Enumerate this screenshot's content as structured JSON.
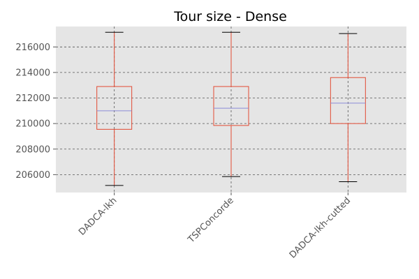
{
  "chart_data": {
    "type": "box",
    "title": "Tour size - Dense",
    "xlabel": "",
    "ylabel": "",
    "ylim": [
      204600,
      217600
    ],
    "yticks": [
      206000,
      208000,
      210000,
      212000,
      214000,
      216000
    ],
    "ytick_labels": [
      "206000",
      "208000",
      "210000",
      "212000",
      "214000",
      "216000"
    ],
    "grid": true,
    "categories": [
      "DADCA-lkh",
      "TSPConcorde",
      "DADCA-lkh-cutted"
    ],
    "boxes": [
      {
        "name": "DADCA-lkh",
        "whisker_low": 205150,
        "q1": 209550,
        "median": 211000,
        "q3": 212900,
        "whisker_high": 217150
      },
      {
        "name": "TSPConcorde",
        "whisker_low": 205850,
        "q1": 209850,
        "median": 211200,
        "q3": 212900,
        "whisker_high": 217150
      },
      {
        "name": "DADCA-lkh-cutted",
        "whisker_low": 205450,
        "q1": 210000,
        "median": 211600,
        "q3": 213600,
        "whisker_high": 217050
      }
    ],
    "colors": {
      "background": "#e5e5e5",
      "box": "#e24a33",
      "median": "#8b8bd6",
      "whisker_cap": "#000000",
      "grid": "#555555"
    }
  }
}
